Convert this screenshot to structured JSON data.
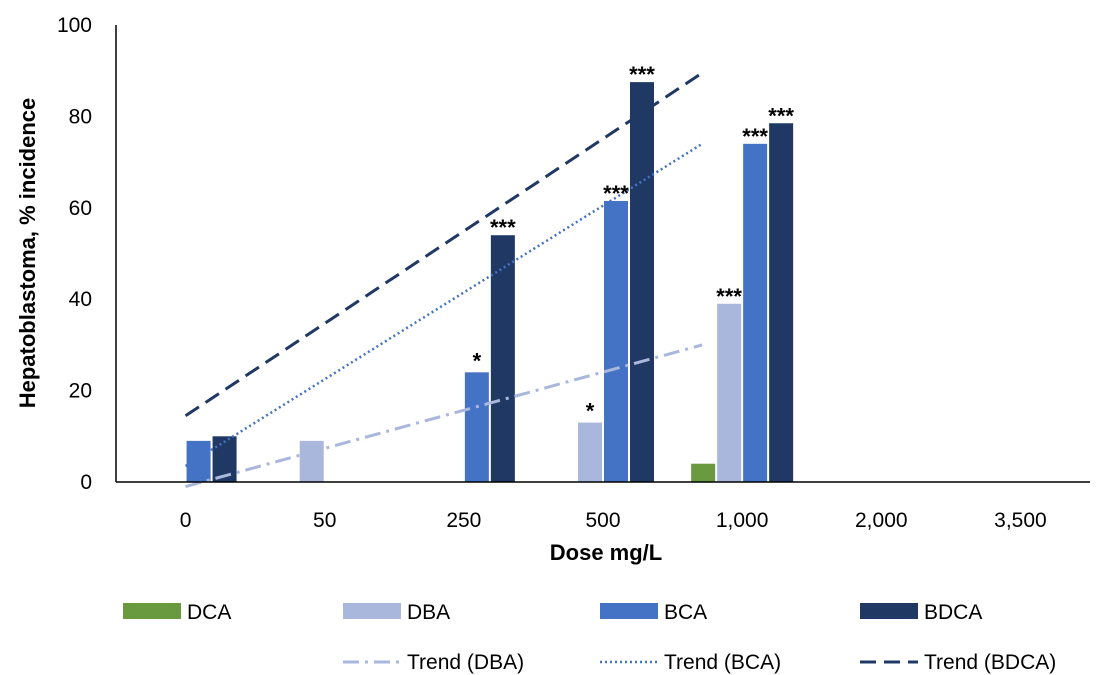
{
  "chart_data": {
    "type": "bar",
    "xlabel": "Dose mg/L",
    "ylabel": "Hepatoblastoma, % incidence",
    "ylim": [
      0,
      100
    ],
    "yticks": [
      "0",
      "20",
      "40",
      "60",
      "80",
      "100"
    ],
    "categories": [
      "0",
      "50",
      "250",
      "500",
      "1,000",
      "2,000",
      "3,500"
    ],
    "grid": false,
    "legend_position": "bottom",
    "series": [
      {
        "name": "DCA",
        "color": "#6a9a3f",
        "values": [
          null,
          null,
          null,
          null,
          4,
          null,
          null
        ],
        "significance": [
          null,
          null,
          null,
          null,
          "",
          null,
          null
        ]
      },
      {
        "name": "DBA",
        "color": "#aab7dc",
        "values": [
          null,
          9,
          null,
          13,
          39,
          null,
          null
        ],
        "significance": [
          null,
          "",
          null,
          "*",
          "***",
          null,
          null
        ]
      },
      {
        "name": "BCA",
        "color": "#4472c4",
        "values": [
          9,
          null,
          24,
          61.5,
          74,
          null,
          null
        ],
        "significance": [
          "",
          null,
          "*",
          "***",
          "***",
          null,
          null
        ]
      },
      {
        "name": "BDCA",
        "color": "#203864",
        "values": [
          10,
          null,
          54,
          87.5,
          78.5,
          null,
          null
        ],
        "significance": [
          "",
          null,
          "***",
          "***",
          "***",
          null,
          null
        ]
      }
    ],
    "trends": [
      {
        "name": "Trend (DBA)",
        "color": "#aab7dc",
        "style": "dash-dot",
        "start": -1,
        "end": 30
      },
      {
        "name": "Trend (BCA)",
        "color": "#4472c4",
        "style": "dotted",
        "start": 3.5,
        "end": 74
      },
      {
        "name": "Trend (BDCA)",
        "color": "#203864",
        "style": "dashed",
        "start": 14.5,
        "end": 89.5
      }
    ]
  }
}
